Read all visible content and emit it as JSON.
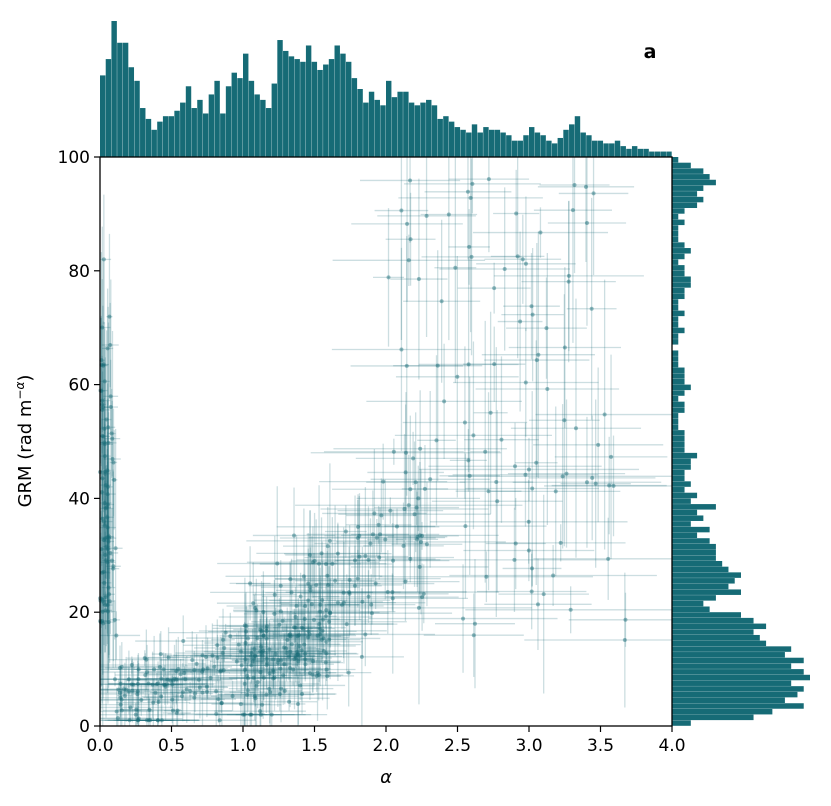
{
  "chart_data": {
    "type": "scatter",
    "panel_label": "a",
    "xlabel": "α",
    "ylabel": "GRM (rad m",
    "ylabel_sup": "−α",
    "ylabel_close": ")",
    "xlim": [
      0.0,
      4.0
    ],
    "ylim": [
      0,
      100
    ],
    "x_ticks": [
      0.0,
      0.5,
      1.0,
      1.5,
      2.0,
      2.5,
      3.0,
      3.5,
      4.0
    ],
    "x_tick_labels": [
      "0.0",
      "0.5",
      "1.0",
      "1.5",
      "2.0",
      "2.5",
      "3.0",
      "3.5",
      "4.0"
    ],
    "y_ticks": [
      0,
      20,
      40,
      60,
      80,
      100
    ],
    "y_tick_labels": [
      "0",
      "20",
      "40",
      "60",
      "80",
      "100"
    ],
    "color": "#166b76",
    "errorbar_alpha": 0.22,
    "point_alpha": 0.45,
    "grid": false,
    "marginal_top_histogram": {
      "bin_width": 0.04,
      "counts": [
        60,
        72,
        100,
        84,
        84,
        66,
        56,
        36,
        28,
        20,
        26,
        30,
        30,
        34,
        40,
        52,
        36,
        42,
        32,
        46,
        56,
        32,
        52,
        62,
        58,
        76,
        56,
        46,
        42,
        36,
        54,
        86,
        78,
        74,
        72,
        70,
        82,
        70,
        64,
        68,
        72,
        82,
        76,
        70,
        58,
        50,
        40,
        48,
        42,
        38,
        56,
        44,
        48,
        48,
        40,
        38,
        40,
        42,
        38,
        28,
        30,
        26,
        22,
        20,
        18,
        24,
        18,
        22,
        20,
        20,
        18,
        16,
        12,
        12,
        16,
        22,
        18,
        16,
        12,
        10,
        14,
        20,
        24,
        30,
        18,
        16,
        12,
        12,
        10,
        10,
        12,
        8,
        6,
        8,
        6,
        6,
        4,
        4,
        4,
        4
      ],
      "count_max": 100
    },
    "marginal_right_histogram": {
      "bin_width": 1,
      "counts": [
        6,
        26,
        32,
        42,
        36,
        40,
        42,
        38,
        44,
        42,
        38,
        42,
        36,
        38,
        30,
        28,
        26,
        30,
        26,
        22,
        12,
        10,
        14,
        22,
        18,
        20,
        22,
        18,
        16,
        14,
        14,
        14,
        12,
        8,
        12,
        6,
        10,
        8,
        14,
        6,
        8,
        4,
        6,
        4,
        4,
        6,
        6,
        8,
        4,
        4,
        4,
        4,
        2,
        2,
        2,
        4,
        4,
        2,
        4,
        6,
        4,
        4,
        4,
        2,
        2,
        2,
        0,
        2,
        2,
        4,
        2,
        2,
        4,
        2,
        2,
        4,
        4,
        6,
        6,
        4,
        4,
        2,
        4,
        6,
        4,
        2,
        2,
        2,
        4,
        2,
        4,
        8,
        10,
        8,
        10,
        14,
        12,
        10,
        6,
        2
      ],
      "count_max": 44
    }
  }
}
